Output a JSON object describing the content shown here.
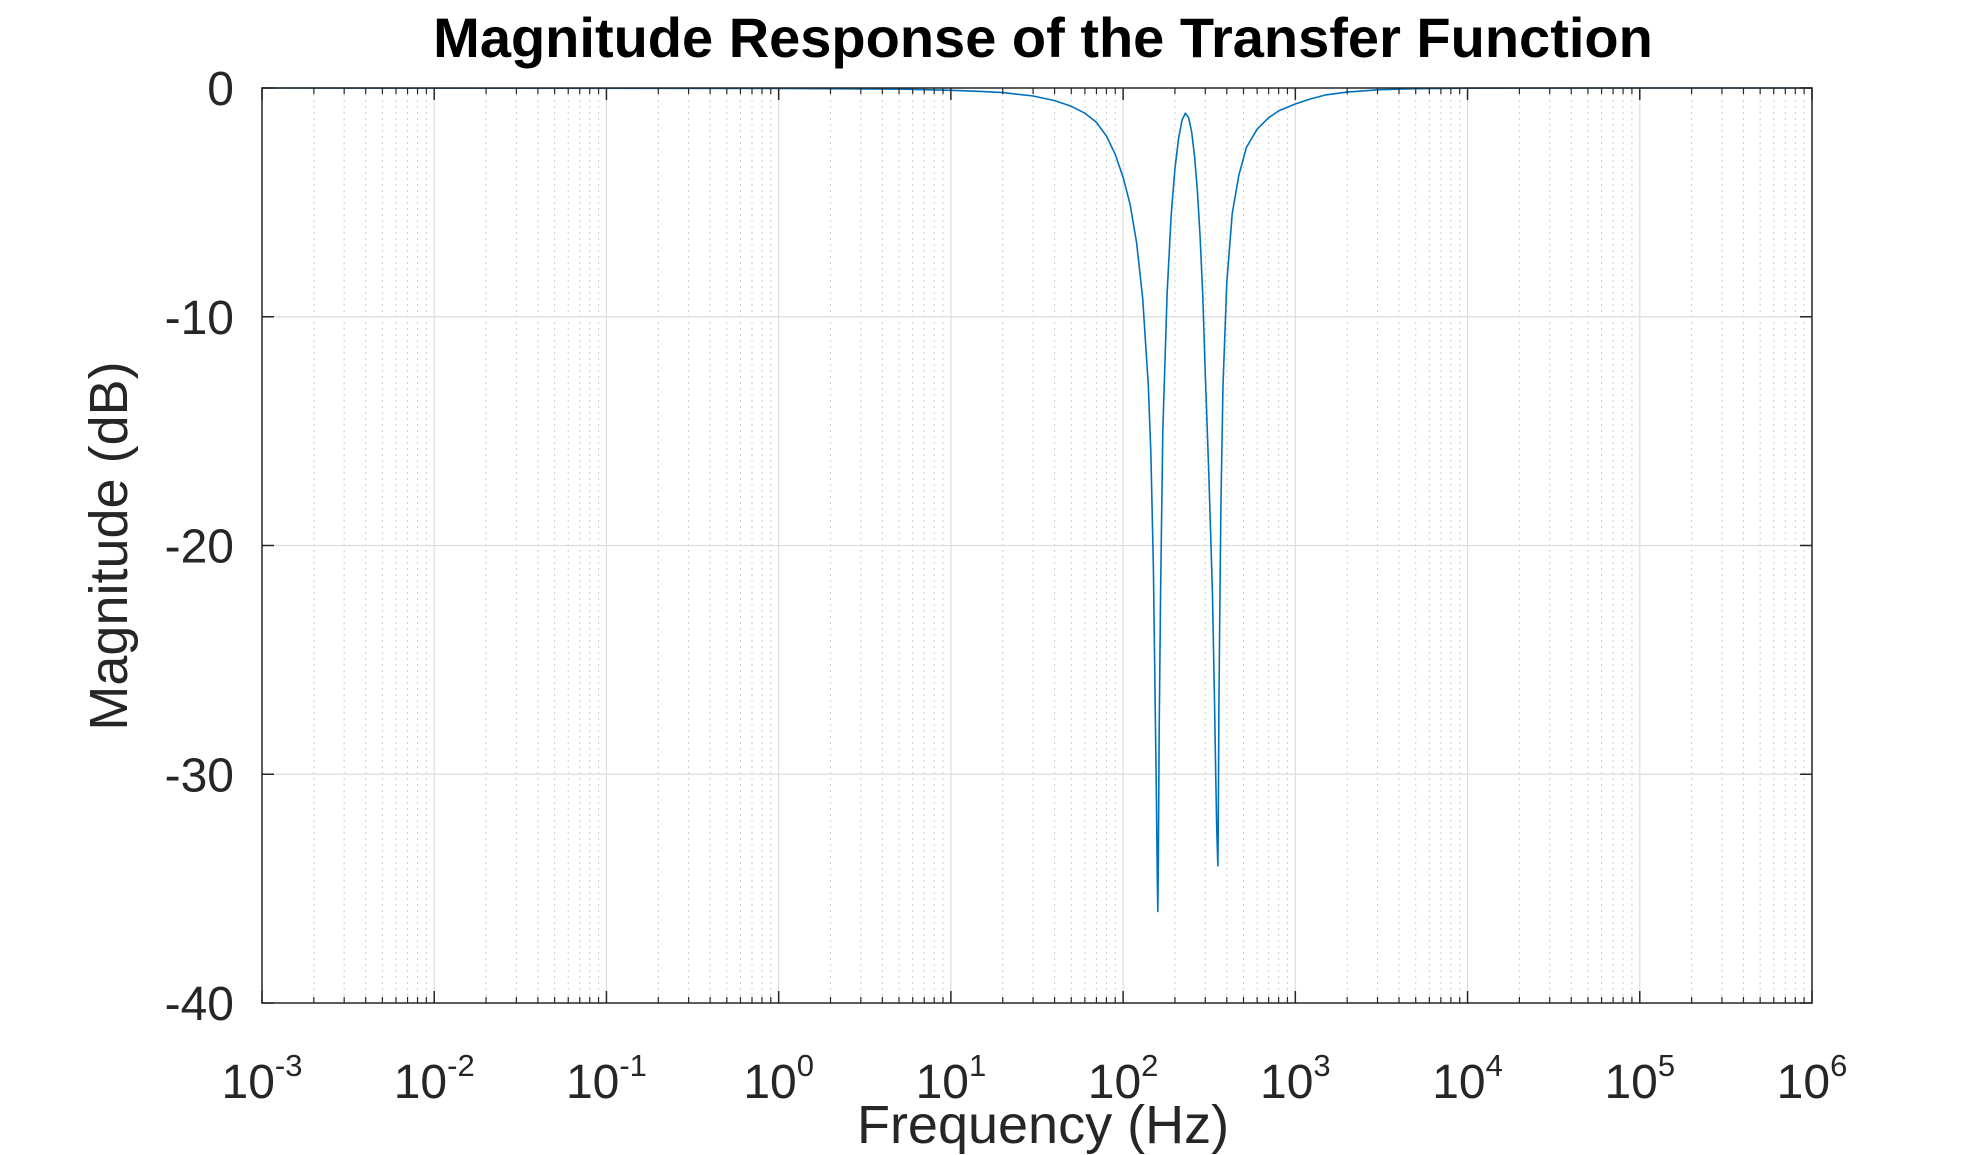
{
  "chart_data": {
    "type": "line",
    "title": "Magnitude Response of the Transfer Function",
    "xlabel": "Frequency (Hz)",
    "ylabel": "Magnitude (dB)",
    "x_scale": "log",
    "xlim": [
      0.001,
      1000000
    ],
    "ylim": [
      -40,
      0
    ],
    "x_ticks": [
      {
        "base": "10",
        "exp": "-3",
        "value": 0.001
      },
      {
        "base": "10",
        "exp": "-2",
        "value": 0.01
      },
      {
        "base": "10",
        "exp": "-1",
        "value": 0.1
      },
      {
        "base": "10",
        "exp": "0",
        "value": 1
      },
      {
        "base": "10",
        "exp": "1",
        "value": 10
      },
      {
        "base": "10",
        "exp": "2",
        "value": 100
      },
      {
        "base": "10",
        "exp": "3",
        "value": 1000
      },
      {
        "base": "10",
        "exp": "4",
        "value": 10000
      },
      {
        "base": "10",
        "exp": "5",
        "value": 100000
      },
      {
        "base": "10",
        "exp": "6",
        "value": 1000000
      }
    ],
    "y_ticks": [
      "0",
      "-10",
      "-20",
      "-30",
      "-40"
    ],
    "y_tick_values": [
      0,
      -10,
      -20,
      -30,
      -40
    ],
    "grid": true,
    "minor_grid": true,
    "series_color": "#0072bd",
    "notches": [
      {
        "frequency_hz": 159,
        "depth_db": -36
      },
      {
        "frequency_hz": 355,
        "depth_db": -34
      }
    ],
    "peak_between": {
      "frequency_hz": 230,
      "magnitude_db": -1.1
    },
    "series": [
      {
        "x": [
          0.001,
          1,
          5,
          10,
          15,
          20,
          30,
          40,
          50,
          60,
          70,
          80,
          90,
          100,
          110,
          120,
          130,
          140,
          145,
          150,
          153,
          156,
          158,
          159,
          160,
          162,
          165,
          170,
          180,
          190,
          200,
          210,
          220,
          230,
          240,
          250,
          260,
          270,
          280,
          290,
          300,
          315,
          330,
          340,
          345,
          350,
          353,
          355,
          357,
          360,
          365,
          370,
          380,
          400,
          430,
          470,
          520,
          600,
          700,
          800,
          1000,
          1200,
          1500,
          2000,
          3000,
          5000,
          10000,
          100000,
          1000000
        ],
        "y": [
          0,
          -0.02,
          -0.05,
          -0.1,
          -0.15,
          -0.2,
          -0.35,
          -0.55,
          -0.8,
          -1.1,
          -1.5,
          -2.1,
          -2.9,
          -3.9,
          -5.1,
          -6.8,
          -9.2,
          -13,
          -16,
          -21,
          -26,
          -31,
          -34.5,
          -36,
          -34,
          -28,
          -22,
          -15,
          -9,
          -5.6,
          -3.5,
          -2.2,
          -1.4,
          -1.1,
          -1.3,
          -1.9,
          -3,
          -4.5,
          -6.5,
          -9,
          -12.5,
          -17,
          -22,
          -27,
          -30,
          -32.5,
          -33.5,
          -34,
          -32,
          -27,
          -22,
          -18,
          -13,
          -8.5,
          -5.5,
          -3.8,
          -2.6,
          -1.8,
          -1.3,
          -1.0,
          -0.7,
          -0.5,
          -0.3,
          -0.18,
          -0.08,
          -0.03,
          -0.01,
          0,
          0
        ]
      }
    ]
  }
}
